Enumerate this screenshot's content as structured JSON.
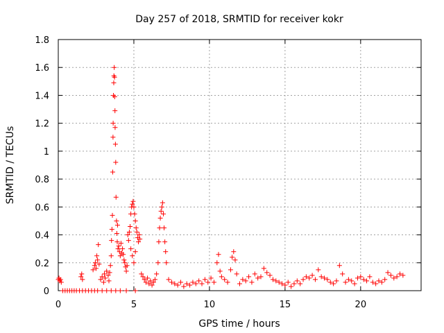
{
  "chart_data": {
    "type": "scatter",
    "title": "Day 257 of 2018, SRMTID for receiver kokr",
    "xlabel": "GPS time / hours",
    "ylabel": "SRMTID / TECUs",
    "xlim": [
      0,
      24
    ],
    "ylim": [
      0,
      1.8
    ],
    "grid": true,
    "marker": "+",
    "series_color": "#ff0000",
    "xticks": [
      0,
      5,
      10,
      15,
      20
    ],
    "xtick_labels": [
      "0",
      "5",
      "10",
      "15",
      "20"
    ],
    "yticks": [
      0,
      0.2,
      0.4,
      0.6,
      0.8,
      1.0,
      1.2,
      1.4,
      1.6,
      1.8
    ],
    "ytick_labels": [
      "0",
      "0.2",
      "0.4",
      "0.6",
      "0.8",
      "1",
      "1.2",
      "1.4",
      "1.6",
      "1.8"
    ],
    "series": [
      {
        "name": "SRMTID",
        "points": [
          [
            0.0,
            0.08
          ],
          [
            0.05,
            0.09
          ],
          [
            0.1,
            0.07
          ],
          [
            0.15,
            0.08
          ],
          [
            0.2,
            0.06
          ],
          [
            0.3,
            0.0
          ],
          [
            0.45,
            0.0
          ],
          [
            0.6,
            0.0
          ],
          [
            0.75,
            0.0
          ],
          [
            0.9,
            0.0
          ],
          [
            1.05,
            0.0
          ],
          [
            1.2,
            0.0
          ],
          [
            1.4,
            0.0
          ],
          [
            1.6,
            0.0
          ],
          [
            1.8,
            0.0
          ],
          [
            2.0,
            0.0
          ],
          [
            2.2,
            0.0
          ],
          [
            2.4,
            0.0
          ],
          [
            2.6,
            0.0
          ],
          [
            2.9,
            0.0
          ],
          [
            3.2,
            0.0
          ],
          [
            3.5,
            0.0
          ],
          [
            3.8,
            0.0
          ],
          [
            4.1,
            0.0
          ],
          [
            4.5,
            0.0
          ],
          [
            5.1,
            0.0
          ],
          [
            1.5,
            0.1
          ],
          [
            1.55,
            0.12
          ],
          [
            1.6,
            0.08
          ],
          [
            2.3,
            0.15
          ],
          [
            2.4,
            0.18
          ],
          [
            2.45,
            0.2
          ],
          [
            2.5,
            0.16
          ],
          [
            2.55,
            0.25
          ],
          [
            2.6,
            0.22
          ],
          [
            2.65,
            0.33
          ],
          [
            2.7,
            0.19
          ],
          [
            2.8,
            0.08
          ],
          [
            2.9,
            0.1
          ],
          [
            3.0,
            0.06
          ],
          [
            3.05,
            0.12
          ],
          [
            3.1,
            0.09
          ],
          [
            3.2,
            0.14
          ],
          [
            3.3,
            0.11
          ],
          [
            3.35,
            0.07
          ],
          [
            3.4,
            0.13
          ],
          [
            3.45,
            0.18
          ],
          [
            3.5,
            0.25
          ],
          [
            3.52,
            0.36
          ],
          [
            3.55,
            0.44
          ],
          [
            3.58,
            0.54
          ],
          [
            3.6,
            0.85
          ],
          [
            3.62,
            1.1
          ],
          [
            3.63,
            1.2
          ],
          [
            3.65,
            1.4
          ],
          [
            3.67,
            1.49
          ],
          [
            3.68,
            1.54
          ],
          [
            3.7,
            1.6
          ],
          [
            3.72,
            1.53
          ],
          [
            3.73,
            1.39
          ],
          [
            3.75,
            1.29
          ],
          [
            3.76,
            1.17
          ],
          [
            3.78,
            1.05
          ],
          [
            3.8,
            0.92
          ],
          [
            3.82,
            0.67
          ],
          [
            3.85,
            0.5
          ],
          [
            3.87,
            0.41
          ],
          [
            3.9,
            0.35
          ],
          [
            3.92,
            0.47
          ],
          [
            3.95,
            0.3
          ],
          [
            4.0,
            0.32
          ],
          [
            4.05,
            0.28
          ],
          [
            4.1,
            0.25
          ],
          [
            4.15,
            0.34
          ],
          [
            4.2,
            0.27
          ],
          [
            4.25,
            0.3
          ],
          [
            4.3,
            0.26
          ],
          [
            4.35,
            0.22
          ],
          [
            4.4,
            0.2
          ],
          [
            4.45,
            0.17
          ],
          [
            4.5,
            0.14
          ],
          [
            4.55,
            0.18
          ],
          [
            4.6,
            0.4
          ],
          [
            4.65,
            0.36
          ],
          [
            4.7,
            0.42
          ],
          [
            4.75,
            0.46
          ],
          [
            4.8,
            0.55
          ],
          [
            4.85,
            0.6
          ],
          [
            4.9,
            0.62
          ],
          [
            4.95,
            0.64
          ],
          [
            5.0,
            0.6
          ],
          [
            5.05,
            0.55
          ],
          [
            5.1,
            0.5
          ],
          [
            5.15,
            0.45
          ],
          [
            5.2,
            0.42
          ],
          [
            5.25,
            0.38
          ],
          [
            5.3,
            0.35
          ],
          [
            5.35,
            0.4
          ],
          [
            5.4,
            0.37
          ],
          [
            4.8,
            0.3
          ],
          [
            4.9,
            0.25
          ],
          [
            5.0,
            0.2
          ],
          [
            5.1,
            0.28
          ],
          [
            5.5,
            0.12
          ],
          [
            5.6,
            0.1
          ],
          [
            5.7,
            0.08
          ],
          [
            5.8,
            0.06
          ],
          [
            5.9,
            0.09
          ],
          [
            6.0,
            0.05
          ],
          [
            6.1,
            0.07
          ],
          [
            6.2,
            0.04
          ],
          [
            6.3,
            0.06
          ],
          [
            6.4,
            0.08
          ],
          [
            6.5,
            0.12
          ],
          [
            6.6,
            0.2
          ],
          [
            6.65,
            0.35
          ],
          [
            6.7,
            0.45
          ],
          [
            6.75,
            0.52
          ],
          [
            6.8,
            0.57
          ],
          [
            6.85,
            0.6
          ],
          [
            6.9,
            0.63
          ],
          [
            6.95,
            0.55
          ],
          [
            7.0,
            0.45
          ],
          [
            7.05,
            0.35
          ],
          [
            7.1,
            0.28
          ],
          [
            7.15,
            0.2
          ],
          [
            7.3,
            0.08
          ],
          [
            7.5,
            0.06
          ],
          [
            7.7,
            0.05
          ],
          [
            7.9,
            0.04
          ],
          [
            8.1,
            0.06
          ],
          [
            8.3,
            0.03
          ],
          [
            8.5,
            0.05
          ],
          [
            8.7,
            0.04
          ],
          [
            8.9,
            0.06
          ],
          [
            9.1,
            0.05
          ],
          [
            9.3,
            0.07
          ],
          [
            9.5,
            0.05
          ],
          [
            9.7,
            0.08
          ],
          [
            9.9,
            0.06
          ],
          [
            10.1,
            0.09
          ],
          [
            10.3,
            0.06
          ],
          [
            10.5,
            0.2
          ],
          [
            10.6,
            0.26
          ],
          [
            10.7,
            0.14
          ],
          [
            10.8,
            0.1
          ],
          [
            11.0,
            0.08
          ],
          [
            11.2,
            0.06
          ],
          [
            11.4,
            0.15
          ],
          [
            11.5,
            0.24
          ],
          [
            11.6,
            0.28
          ],
          [
            11.7,
            0.22
          ],
          [
            11.8,
            0.12
          ],
          [
            12.0,
            0.05
          ],
          [
            12.2,
            0.08
          ],
          [
            12.4,
            0.07
          ],
          [
            12.6,
            0.1
          ],
          [
            12.8,
            0.06
          ],
          [
            13.0,
            0.12
          ],
          [
            13.2,
            0.09
          ],
          [
            13.4,
            0.1
          ],
          [
            13.6,
            0.16
          ],
          [
            13.8,
            0.13
          ],
          [
            14.0,
            0.11
          ],
          [
            14.2,
            0.08
          ],
          [
            14.4,
            0.07
          ],
          [
            14.6,
            0.06
          ],
          [
            14.8,
            0.05
          ],
          [
            15.0,
            0.04
          ],
          [
            15.2,
            0.06
          ],
          [
            15.4,
            0.03
          ],
          [
            15.6,
            0.05
          ],
          [
            15.8,
            0.07
          ],
          [
            16.0,
            0.05
          ],
          [
            16.2,
            0.08
          ],
          [
            16.4,
            0.1
          ],
          [
            16.6,
            0.09
          ],
          [
            16.8,
            0.11
          ],
          [
            17.0,
            0.08
          ],
          [
            17.2,
            0.15
          ],
          [
            17.4,
            0.1
          ],
          [
            17.6,
            0.09
          ],
          [
            17.8,
            0.08
          ],
          [
            18.0,
            0.06
          ],
          [
            18.2,
            0.05
          ],
          [
            18.4,
            0.07
          ],
          [
            18.6,
            0.18
          ],
          [
            18.8,
            0.12
          ],
          [
            19.0,
            0.06
          ],
          [
            19.2,
            0.08
          ],
          [
            19.4,
            0.07
          ],
          [
            19.6,
            0.05
          ],
          [
            19.8,
            0.09
          ],
          [
            20.0,
            0.1
          ],
          [
            20.2,
            0.08
          ],
          [
            20.4,
            0.07
          ],
          [
            20.6,
            0.1
          ],
          [
            20.8,
            0.06
          ],
          [
            21.0,
            0.05
          ],
          [
            21.2,
            0.07
          ],
          [
            21.4,
            0.06
          ],
          [
            21.6,
            0.08
          ],
          [
            21.8,
            0.13
          ],
          [
            22.0,
            0.11
          ],
          [
            22.2,
            0.09
          ],
          [
            22.4,
            0.1
          ],
          [
            22.6,
            0.12
          ],
          [
            22.8,
            0.11
          ]
        ]
      }
    ]
  }
}
